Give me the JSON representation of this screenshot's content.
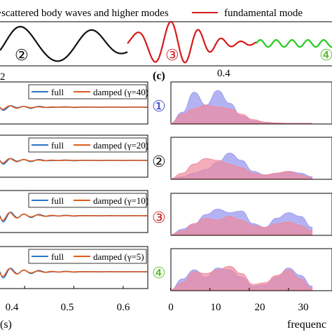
{
  "colors": {
    "black": "#111111",
    "red": "#d61a1a",
    "green": "#22cc22",
    "full": "#2a73c4",
    "damped": "#e05a1b",
    "blue_fill": "#9a9af0",
    "red_fill": "#f08a9c",
    "overlap_fill": "#b56aa8",
    "marker_blue": "#4040cc",
    "marker_red": "#cc2222",
    "marker_green": "#55bb22"
  },
  "chart_data": [
    {
      "type": "line",
      "panel": "top",
      "legend": {
        "placement": "top",
        "entries": [
          {
            "label": "scattered body waves and higher modes",
            "color": "#111111"
          },
          {
            "label": "fundamental mode",
            "color": "#d61a1a"
          }
        ]
      },
      "segment_markers": [
        "②",
        "③",
        "④"
      ]
    },
    {
      "type": "line",
      "panel": "b",
      "xlabel": "(s)",
      "xticks": [
        "0.4",
        "0.5",
        "0.6"
      ],
      "xlim": [
        0.35,
        0.65
      ],
      "top_partial_label": "2",
      "subplots": [
        {
          "legend": [
            "full",
            "damped (γ=40)"
          ]
        },
        {
          "legend": [
            "full",
            "damped (γ=20)"
          ]
        },
        {
          "legend": [
            "full",
            "damped (γ=10)"
          ]
        },
        {
          "legend": [
            "full",
            "damped (γ=5)"
          ]
        }
      ]
    },
    {
      "type": "area",
      "panel": "c",
      "panel_label": "(c)",
      "top_tick_label": "0.4",
      "xlabel": "frequenc",
      "xticks": [
        "0",
        "10",
        "20",
        "30"
      ],
      "xlim": [
        -1,
        40
      ],
      "row_markers": [
        "①",
        "②",
        "③",
        "④"
      ],
      "rows": [
        {
          "x": [
            0,
            3,
            6,
            9,
            12,
            15,
            18,
            21,
            24,
            27,
            30,
            33,
            36
          ],
          "blue": [
            0.0,
            0.3,
            0.85,
            0.5,
            0.9,
            0.55,
            0.2,
            0.06,
            0.02,
            0.01,
            0.0,
            0.0,
            0.0
          ],
          "red": [
            0.0,
            0.25,
            0.4,
            0.5,
            0.45,
            0.4,
            0.25,
            0.1,
            0.03,
            0.01,
            0.0,
            0.0,
            0.0
          ]
        },
        {
          "x": [
            0,
            3,
            6,
            9,
            12,
            15,
            18,
            21,
            24,
            27,
            30,
            33,
            36
          ],
          "blue": [
            0.0,
            0.05,
            0.15,
            0.25,
            0.45,
            0.7,
            0.5,
            0.2,
            0.1,
            0.15,
            0.2,
            0.15,
            0.05
          ],
          "red": [
            0.0,
            0.15,
            0.4,
            0.55,
            0.5,
            0.4,
            0.3,
            0.15,
            0.1,
            0.15,
            0.2,
            0.1,
            0.02
          ]
        },
        {
          "x": [
            0,
            3,
            6,
            9,
            12,
            15,
            18,
            21,
            24,
            27,
            30,
            33,
            36
          ],
          "blue": [
            0.0,
            0.15,
            0.3,
            0.55,
            0.7,
            0.6,
            0.65,
            0.3,
            0.2,
            0.45,
            0.6,
            0.5,
            0.2
          ],
          "red": [
            0.0,
            0.1,
            0.3,
            0.45,
            0.4,
            0.5,
            0.4,
            0.25,
            0.2,
            0.3,
            0.35,
            0.25,
            0.1
          ]
        },
        {
          "x": [
            0,
            3,
            6,
            9,
            12,
            15,
            18,
            21,
            24,
            27,
            30,
            33,
            36
          ],
          "blue": [
            0.0,
            0.3,
            0.55,
            0.35,
            0.6,
            0.55,
            0.35,
            0.1,
            0.15,
            0.35,
            0.6,
            0.4,
            0.1
          ],
          "red": [
            0.0,
            0.2,
            0.5,
            0.45,
            0.55,
            0.65,
            0.45,
            0.15,
            0.2,
            0.4,
            0.55,
            0.3,
            0.05
          ]
        }
      ]
    }
  ]
}
